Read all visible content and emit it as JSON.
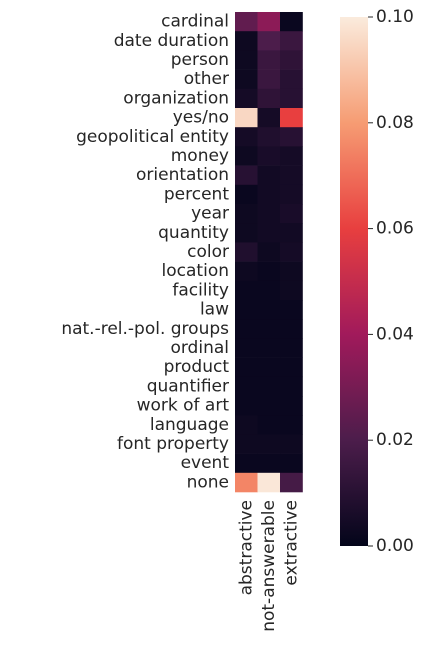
{
  "chart_data": {
    "type": "heatmap",
    "categories": [
      "cardinal",
      "date duration",
      "person",
      "other",
      "organization",
      "yes/no",
      "geopolitical entity",
      "money",
      "orientation",
      "percent",
      "year",
      "quantity",
      "color",
      "location",
      "facility",
      "law",
      "nat.-rel.-pol. groups",
      "ordinal",
      "product",
      "quantifier",
      "work of art",
      "language",
      "font property",
      "event",
      "none"
    ],
    "series": [
      {
        "name": "abstractive",
        "values": [
          0.025,
          0.003,
          0.003,
          0.003,
          0.005,
          0.095,
          0.005,
          0.003,
          0.01,
          0.002,
          0.003,
          0.003,
          0.008,
          0.003,
          0.002,
          0.002,
          0.002,
          0.002,
          0.002,
          0.002,
          0.002,
          0.003,
          0.003,
          0.002,
          0.075
        ]
      },
      {
        "name": "not-answerable",
        "values": [
          0.035,
          0.02,
          0.015,
          0.015,
          0.012,
          0.005,
          0.008,
          0.006,
          0.004,
          0.004,
          0.004,
          0.004,
          0.003,
          0.002,
          0.002,
          0.002,
          0.002,
          0.002,
          0.002,
          0.002,
          0.002,
          0.002,
          0.003,
          0.002,
          0.099
        ]
      },
      {
        "name": "extractive",
        "values": [
          0.002,
          0.015,
          0.012,
          0.01,
          0.01,
          0.06,
          0.01,
          0.005,
          0.005,
          0.005,
          0.006,
          0.004,
          0.005,
          0.003,
          0.003,
          0.002,
          0.002,
          0.002,
          0.002,
          0.002,
          0.002,
          0.002,
          0.003,
          0.002,
          0.018
        ]
      }
    ],
    "colormap": [
      "#03051a",
      "#4c1d4b",
      "#a11a5b",
      "#e83f3f",
      "#f69c73",
      "#faebdd"
    ],
    "zlim": [
      0,
      0.1
    ],
    "zticks": [
      {
        "value": 0,
        "label": "0.00"
      },
      {
        "value": 0.02,
        "label": "0.02"
      },
      {
        "value": 0.04,
        "label": "0.04"
      },
      {
        "value": 0.06,
        "label": "0.06"
      },
      {
        "value": 0.08,
        "label": "0.08"
      },
      {
        "value": 0.1,
        "label": "0.10"
      }
    ]
  }
}
